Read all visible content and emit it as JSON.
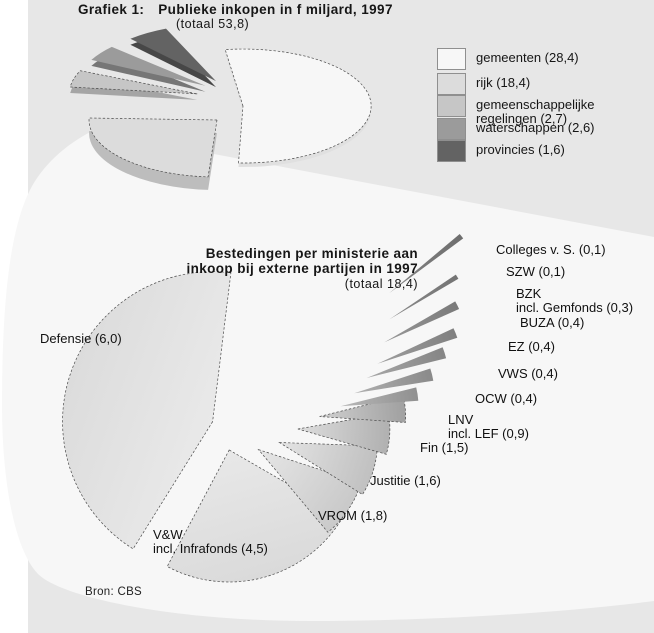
{
  "source": "Bron: CBS",
  "chart_data": [
    {
      "type": "pie",
      "variant": "3d-exploded",
      "title_prefix": "Grafiek 1:",
      "title": "Publieke inkopen in f miljard, 1997",
      "subtitle": "(totaal 53,8)",
      "total": 53.8,
      "unit": "f miljard",
      "legend_position": "right",
      "slices": [
        {
          "name": "gemeenten",
          "legend_lines": [
            "gemeenten (28,4)"
          ],
          "value": 28.4,
          "color": "#f7f7f7"
        },
        {
          "name": "rijk",
          "legend_lines": [
            "rijk (18,4)"
          ],
          "value": 18.4,
          "color": "#dcdcdc"
        },
        {
          "name": "gemeenschappelijke-regelingen",
          "legend_lines": [
            "gemeenschappelijke",
            "regelingen (2,7)"
          ],
          "value": 2.7,
          "color": "#c6c6c6"
        },
        {
          "name": "waterschappen",
          "legend_lines": [
            "waterschappen (2,6)"
          ],
          "value": 2.6,
          "color": "#9b9b9b"
        },
        {
          "name": "provincies",
          "legend_lines": [
            "provincies (1,6)"
          ],
          "value": 1.6,
          "color": "#636363"
        }
      ]
    },
    {
      "type": "pie",
      "variant": "exploded-fan",
      "title_lines": [
        "Bestedingen per ministerie aan",
        "inkoop bij externe partijen in 1997"
      ],
      "subtitle": "(totaal 18,4)",
      "total": 18.4,
      "slices": [
        {
          "name": "defensie",
          "label_lines": [
            "Defensie (6,0)"
          ],
          "value": 6.0,
          "color": "#dcdcdc"
        },
        {
          "name": "vw",
          "label_lines": [
            "V&W",
            "incl. Infrafonds (4,5)"
          ],
          "value": 4.5,
          "color": "#dadada"
        },
        {
          "name": "vrom",
          "label_lines": [
            "VROM (1,8)"
          ],
          "value": 1.8,
          "color": "#c9c9c9"
        },
        {
          "name": "justitie",
          "label_lines": [
            "Justitie (1,6)"
          ],
          "value": 1.6,
          "color": "#c0c0c0"
        },
        {
          "name": "fin",
          "label_lines": [
            "Fin (1,5)"
          ],
          "value": 1.5,
          "color": "#b0b0b0"
        },
        {
          "name": "lnv",
          "label_lines": [
            "LNV",
            "incl. LEF (0,9)"
          ],
          "value": 0.9,
          "color": "#a0a0a0"
        },
        {
          "name": "ocw",
          "label_lines": [
            "OCW (0,4)"
          ],
          "value": 0.4,
          "color": "#909090"
        },
        {
          "name": "vws",
          "label_lines": [
            "VWS (0,4)"
          ],
          "value": 0.4,
          "color": "#8a8a8a"
        },
        {
          "name": "ez",
          "label_lines": [
            "EZ (0,4)"
          ],
          "value": 0.4,
          "color": "#858585"
        },
        {
          "name": "buza",
          "label_lines": [
            "BUZA (0,4)"
          ],
          "value": 0.4,
          "color": "#808080"
        },
        {
          "name": "bzk",
          "label_lines": [
            "BZK",
            "incl. Gemfonds (0,3)"
          ],
          "value": 0.3,
          "color": "#7a7a7a"
        },
        {
          "name": "szw",
          "label_lines": [
            "SZW (0,1)"
          ],
          "value": 0.1,
          "color": "#747474"
        },
        {
          "name": "colleges",
          "label_lines": [
            "Colleges v. S. (0,1)"
          ],
          "value": 0.1,
          "color": "#6e6e6e"
        }
      ]
    }
  ]
}
